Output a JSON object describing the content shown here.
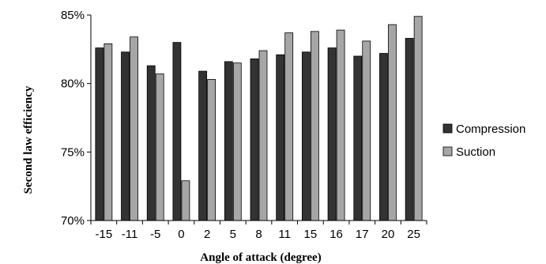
{
  "chart_data": {
    "type": "bar",
    "title": "",
    "xlabel": "Angle of attack (degree)",
    "ylabel": "Second law efficiency",
    "categories": [
      "-15",
      "-11",
      "-5",
      "0",
      "2",
      "5",
      "8",
      "11",
      "15",
      "16",
      "17",
      "20",
      "25"
    ],
    "series": [
      {
        "name": "Compression",
        "color": "#333333",
        "values": [
          82.6,
          82.3,
          81.3,
          83.0,
          80.9,
          81.6,
          81.8,
          82.1,
          82.3,
          82.6,
          82.0,
          82.2,
          83.3
        ]
      },
      {
        "name": "Suction",
        "color": "#a6a6a6",
        "values": [
          82.9,
          83.4,
          80.7,
          72.9,
          80.3,
          81.5,
          82.4,
          83.7,
          83.8,
          83.9,
          83.1,
          84.3,
          84.9
        ]
      }
    ],
    "ylim": [
      70,
      85
    ],
    "yticks": [
      70,
      75,
      80,
      85
    ],
    "ytick_labels": [
      "70%",
      "75%",
      "80%",
      "85%"
    ],
    "grid": false,
    "legend_position": "right"
  }
}
